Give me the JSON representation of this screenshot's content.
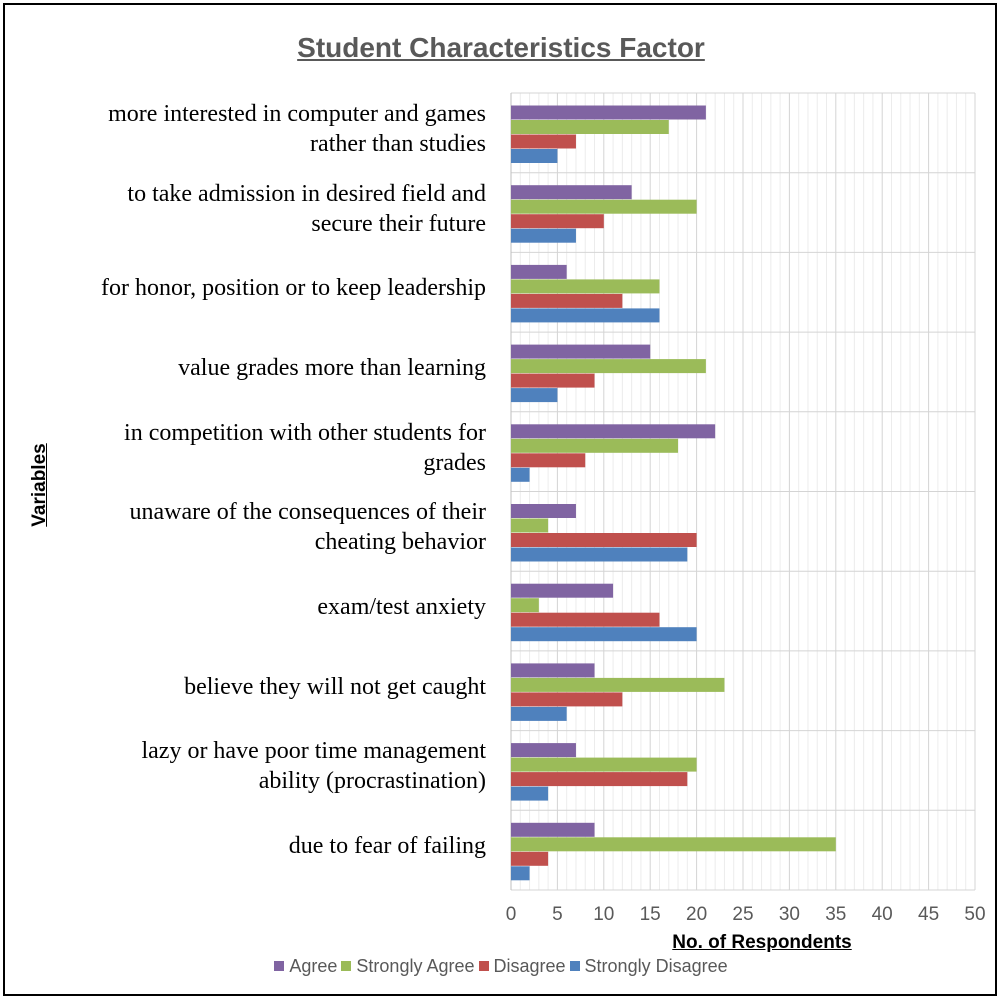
{
  "chart_data": {
    "type": "bar",
    "orientation": "horizontal",
    "title": "Student Characteristics Factor",
    "xlabel": "No. of Respondents",
    "ylabel": "Variables",
    "xlim": [
      0,
      50
    ],
    "xticks": [
      "0",
      "5",
      "10",
      "15",
      "20",
      "25",
      "30",
      "35",
      "40",
      "45",
      "50"
    ],
    "grid": true,
    "legend_position": "bottom",
    "categories": [
      [
        "more interested in computer and games",
        "rather than studies"
      ],
      [
        "to  take admission in desired field and",
        "secure their future"
      ],
      [
        "for honor, position or to keep leadership"
      ],
      [
        "value grades more than learning"
      ],
      [
        "in competition with other students for",
        "grades"
      ],
      [
        "unaware of the consequences of their",
        "cheating behavior"
      ],
      [
        "exam/test anxiety"
      ],
      [
        "believe they will not get caught"
      ],
      [
        "lazy or have poor time management",
        "ability (procrastination)"
      ],
      [
        "due to fear of failing"
      ]
    ],
    "series": [
      {
        "name": "Agree",
        "color": "#8064a2",
        "values": [
          21,
          13,
          6,
          15,
          22,
          7,
          11,
          9,
          7,
          9
        ]
      },
      {
        "name": "Strongly Agree",
        "color": "#9bbb59",
        "values": [
          17,
          20,
          16,
          21,
          18,
          4,
          3,
          23,
          20,
          35
        ]
      },
      {
        "name": "Disagree",
        "color": "#c0504d",
        "values": [
          7,
          10,
          12,
          9,
          8,
          20,
          16,
          12,
          19,
          4
        ]
      },
      {
        "name": "Strongly Disagree",
        "color": "#4f81bd",
        "values": [
          5,
          7,
          16,
          5,
          2,
          19,
          20,
          6,
          4,
          2
        ]
      }
    ]
  }
}
